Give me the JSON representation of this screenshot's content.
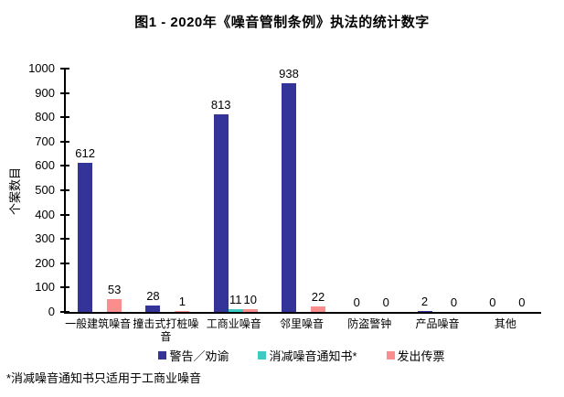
{
  "title": "图1 - 2020年《噪音管制条例》执法的统计数字",
  "footnote": "*消减噪音通知书只适用于工商业噪音",
  "colors": {
    "warning": "#333399",
    "abatement_notice": "#3FC9C3",
    "summons": "#FA8E8E",
    "axis": "#000000",
    "background": "#ffffff"
  },
  "chart_data": {
    "type": "bar",
    "title": "图1 - 2020年《噪音管制条例》执法的统计数字",
    "xlabel": "",
    "ylabel": "个案数目",
    "ylim": [
      0,
      1000
    ],
    "ytick_step": 100,
    "grid": false,
    "legend_position": "bottom",
    "value_labels": true,
    "categories": [
      "一般建筑噪音",
      "撞击式打桩噪音",
      "工商业噪音",
      "邻里噪音",
      "防盗警钟",
      "产品噪音",
      "其他"
    ],
    "series": [
      {
        "name": "警告／劝谕",
        "color": "#333399",
        "values": [
          612,
          28,
          813,
          938,
          0,
          2,
          0
        ]
      },
      {
        "name": "消减噪音通知书*",
        "color": "#3FC9C3",
        "values": [
          null,
          null,
          11,
          null,
          null,
          null,
          null
        ]
      },
      {
        "name": "发出传票",
        "color": "#FA8E8E",
        "values": [
          53,
          1,
          10,
          22,
          0,
          0,
          0
        ]
      }
    ],
    "annotation": "*消减噪音通知书只适用于工商业噪音"
  }
}
